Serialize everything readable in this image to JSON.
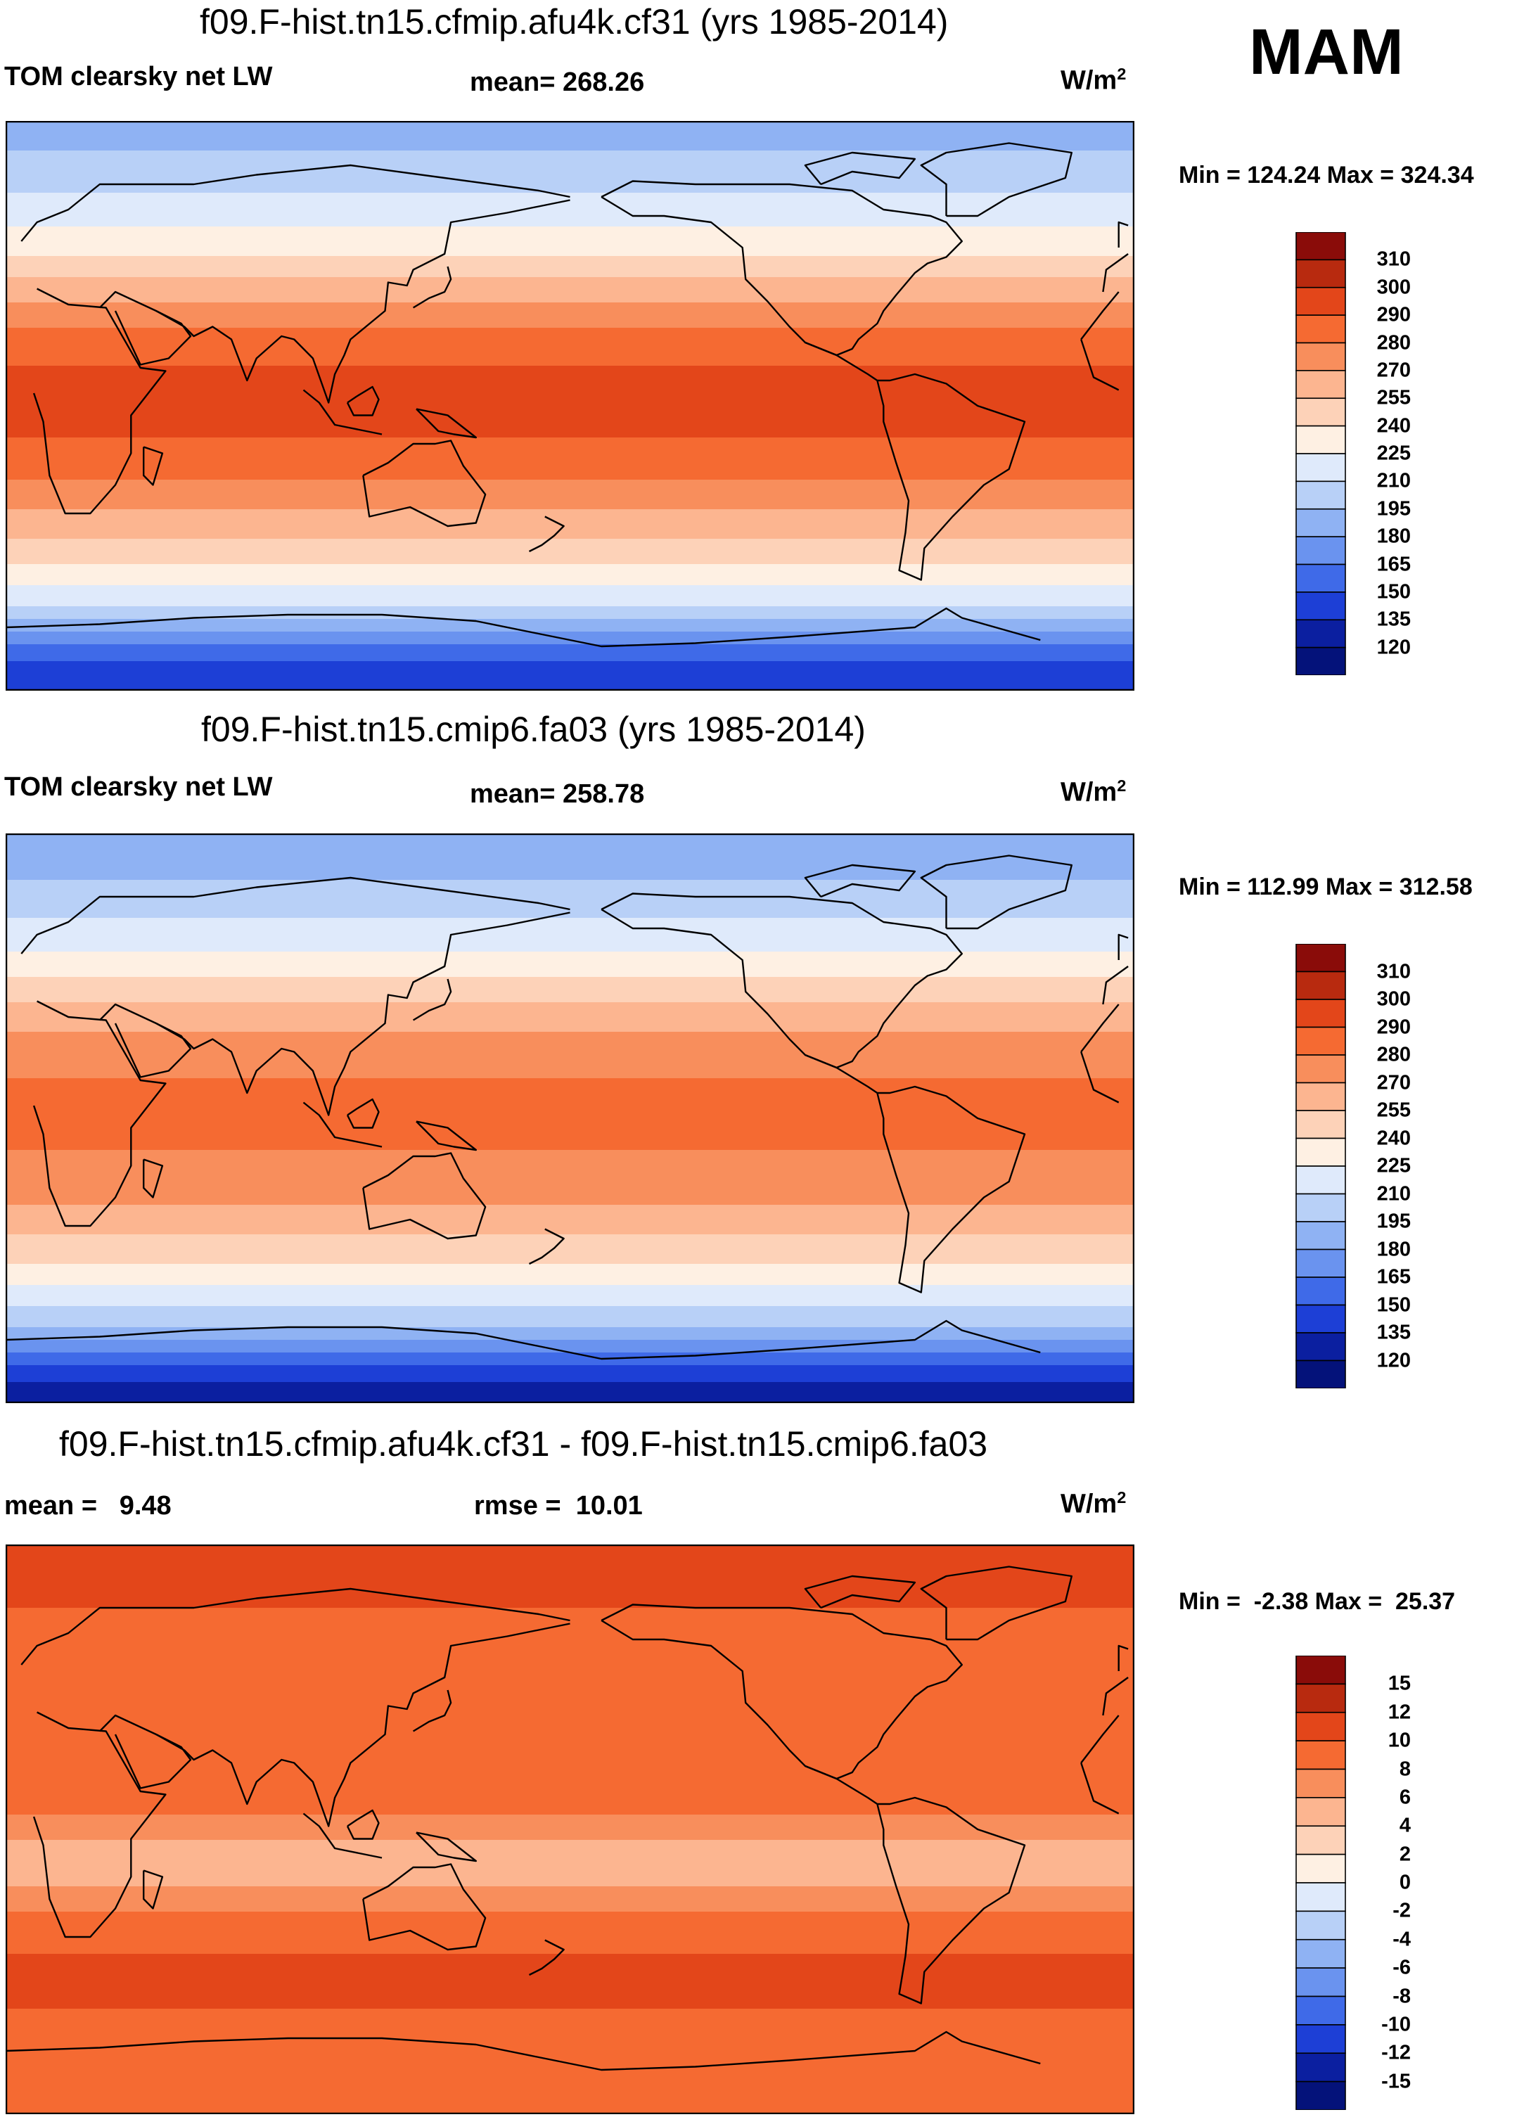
{
  "season": "MAM",
  "units_text": "W/m",
  "units_sup": "2",
  "panels": [
    {
      "title": "f09.F-hist.tn15.cfmip.afu4k.cf31 (yrs 1985-2014)",
      "left_label": "TOM clearsky net LW",
      "center_label": "mean= 268.26",
      "minmax": "Min = 124.24 Max = 324.34"
    },
    {
      "title": "f09.F-hist.tn15.cmip6.fa03 (yrs 1985-2014)",
      "left_label": "TOM clearsky net LW",
      "center_label": "mean= 258.78",
      "minmax": "Min = 112.99 Max = 312.58"
    },
    {
      "title": "f09.F-hist.tn15.cfmip.afu4k.cf31 - f09.F-hist.tn15.cmip6.fa03",
      "left_label": "mean =   9.48",
      "center_label": "rmse =  10.01",
      "minmax": "Min =  -2.38 Max =  25.37"
    }
  ],
  "chart_data": [
    {
      "type": "heatmap",
      "title": "f09.F-hist.tn15.cfmip.afu4k.cf31 (yrs 1985-2014)",
      "variable": "TOM clearsky net LW",
      "units": "W/m2",
      "mean": 268.26,
      "min": 124.24,
      "max": 324.34,
      "colorbar_levels": [
        310,
        300,
        290,
        280,
        270,
        255,
        240,
        225,
        210,
        195,
        180,
        165,
        150,
        135,
        120
      ],
      "colorbar_colors": [
        "#8a0c09",
        "#b82a0f",
        "#e3461a",
        "#f56a32",
        "#f88e5c",
        "#fcb590",
        "#fdd2b8",
        "#fef0e3",
        "#dfeafb",
        "#b8d0f7",
        "#8fb2f3",
        "#6a93ef",
        "#3f6ae8",
        "#1d3fd6",
        "#0b1fa0",
        "#04127a"
      ],
      "zonal_profile_lat": [
        90,
        70,
        50,
        30,
        10,
        -10,
        -30,
        -50,
        -65,
        -80,
        -90
      ],
      "zonal_profile_value": [
        185,
        205,
        235,
        275,
        292,
        290,
        275,
        240,
        205,
        150,
        135
      ]
    },
    {
      "type": "heatmap",
      "title": "f09.F-hist.tn15.cmip6.fa03 (yrs 1985-2014)",
      "variable": "TOM clearsky net LW",
      "units": "W/m2",
      "mean": 258.78,
      "min": 112.99,
      "max": 312.58,
      "colorbar_levels": [
        310,
        300,
        290,
        280,
        270,
        255,
        240,
        225,
        210,
        195,
        180,
        165,
        150,
        135,
        120
      ],
      "colorbar_colors": [
        "#8a0c09",
        "#b82a0f",
        "#e3461a",
        "#f56a32",
        "#f88e5c",
        "#fcb590",
        "#fdd2b8",
        "#fef0e3",
        "#dfeafb",
        "#b8d0f7",
        "#8fb2f3",
        "#6a93ef",
        "#3f6ae8",
        "#1d3fd6",
        "#0b1fa0",
        "#04127a"
      ],
      "zonal_profile_lat": [
        90,
        70,
        50,
        30,
        10,
        -10,
        -30,
        -50,
        -65,
        -80,
        -90
      ],
      "zonal_profile_value": [
        180,
        200,
        228,
        268,
        282,
        280,
        268,
        232,
        198,
        140,
        125
      ]
    },
    {
      "type": "heatmap",
      "title": "f09.F-hist.tn15.cfmip.afu4k.cf31 - f09.F-hist.tn15.cmip6.fa03",
      "variable": "difference",
      "units": "W/m2",
      "mean": 9.48,
      "rmse": 10.01,
      "min": -2.38,
      "max": 25.37,
      "colorbar_levels": [
        15,
        12,
        10,
        8,
        6,
        4,
        2,
        0,
        -2,
        -4,
        -6,
        -8,
        -10,
        -12,
        -15
      ],
      "colorbar_colors": [
        "#8a0c09",
        "#b82a0f",
        "#e3461a",
        "#f56a32",
        "#f88e5c",
        "#fcb590",
        "#fdd2b8",
        "#fef0e3",
        "#dfeafb",
        "#b8d0f7",
        "#8fb2f3",
        "#6a93ef",
        "#3f6ae8",
        "#1d3fd6",
        "#0b1fa0",
        "#04127a"
      ],
      "zonal_profile_lat": [
        90,
        70,
        50,
        30,
        10,
        0,
        -10,
        -30,
        -50,
        -70,
        -90
      ],
      "zonal_profile_value": [
        12,
        10,
        9,
        10,
        9,
        7,
        4,
        9,
        11,
        8,
        10
      ]
    }
  ]
}
